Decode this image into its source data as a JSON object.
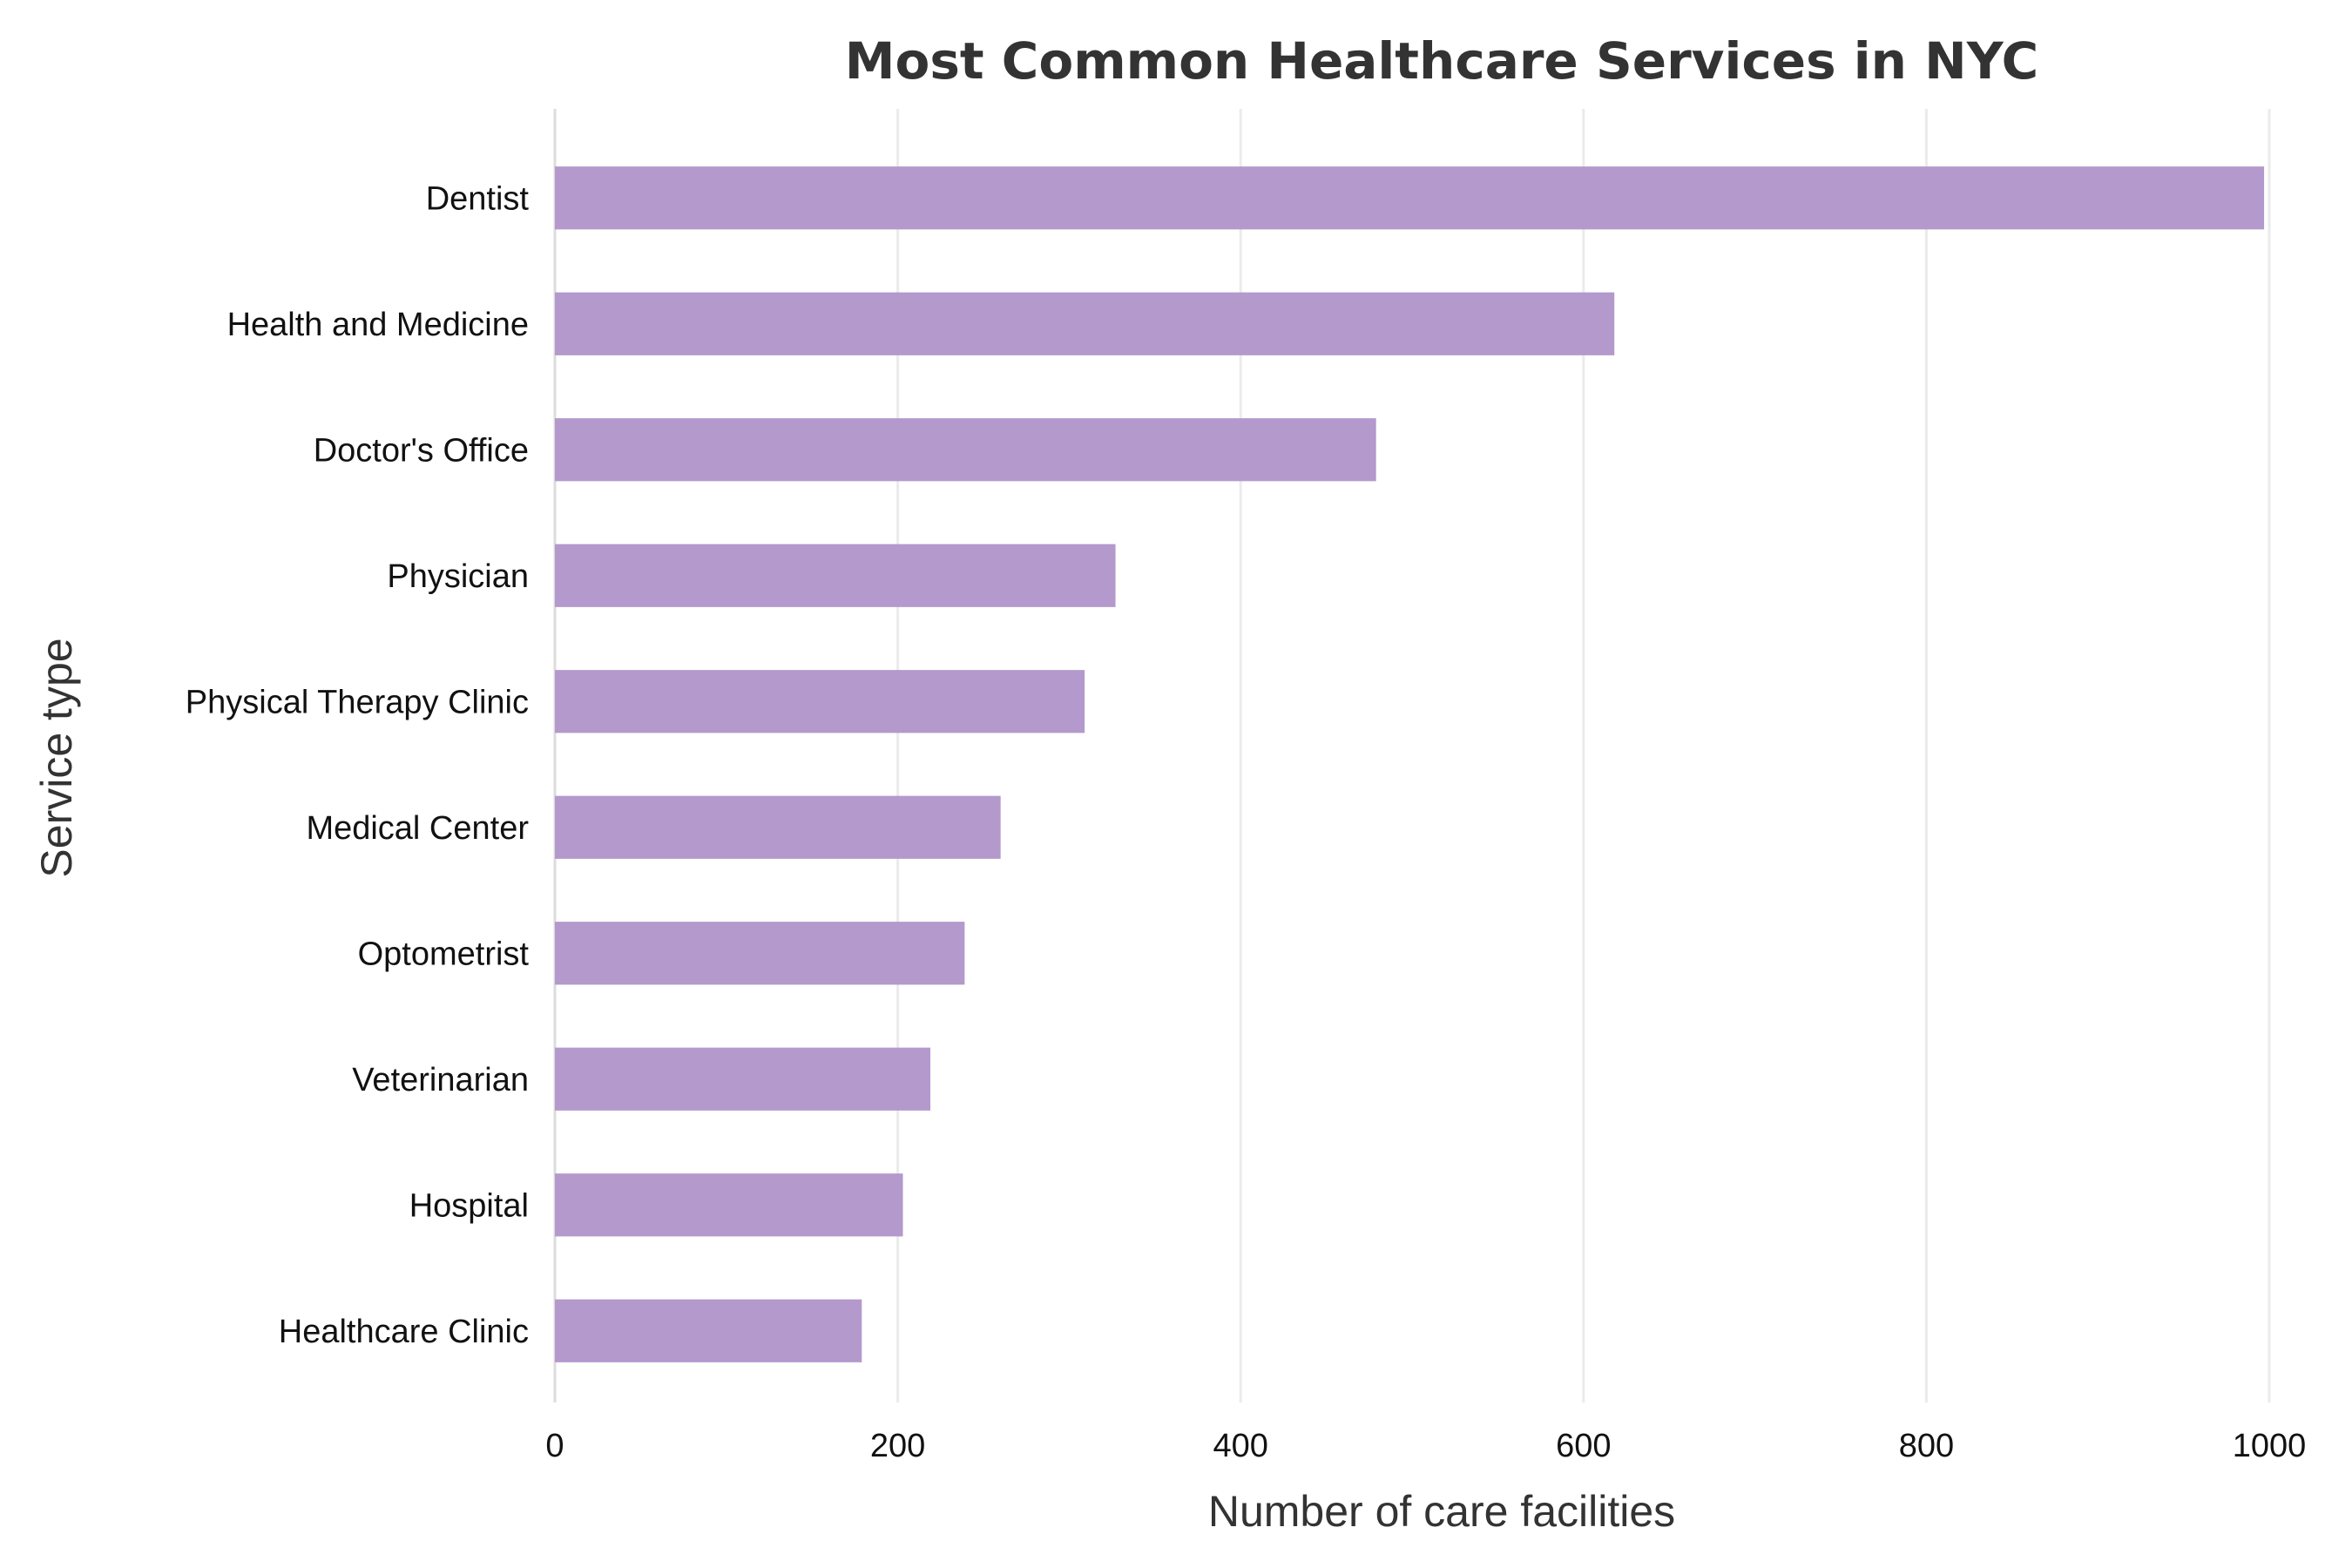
{
  "chart_data": {
    "type": "bar",
    "orientation": "horizontal",
    "title": "Most Common Healthcare Services in NYC",
    "xlabel": "Number of care facilities",
    "ylabel": "Service type",
    "categories": [
      "Dentist",
      "Health and Medicine",
      "Doctor's Office",
      "Physician",
      "Physical Therapy Clinic",
      "Medical Center",
      "Optometrist",
      "Veterinarian",
      "Hospital",
      "Healthcare Clinic"
    ],
    "values": [
      997,
      618,
      479,
      327,
      309,
      260,
      239,
      219,
      203,
      179
    ],
    "xlim": [
      0,
      1000
    ],
    "xticks": [
      0,
      200,
      400,
      600,
      800,
      1000
    ],
    "grid": "vertical",
    "legend": "none",
    "colors": {
      "bar": "#b399cc",
      "grid": "#ebebeb",
      "text": "#333333"
    }
  }
}
